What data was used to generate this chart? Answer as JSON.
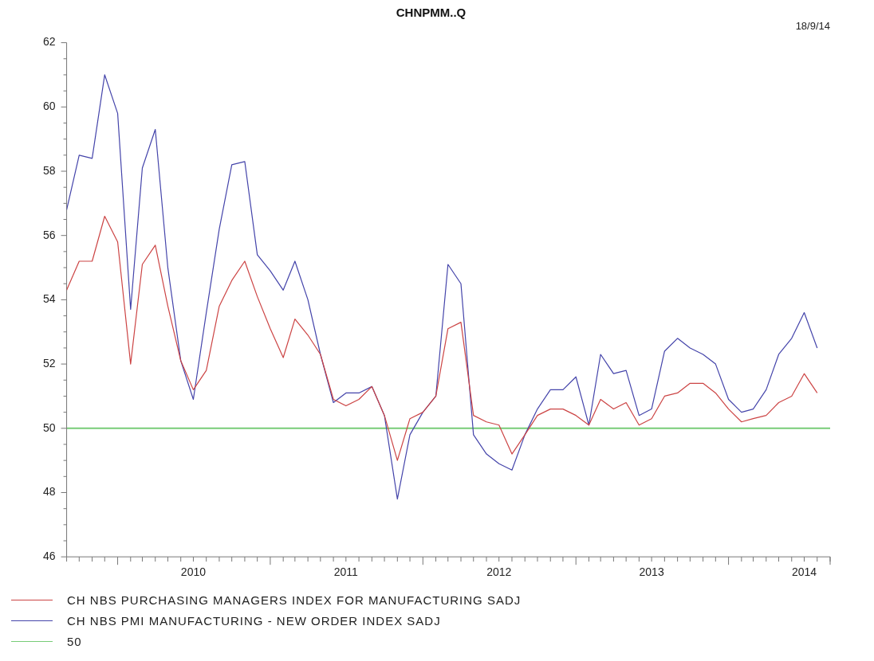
{
  "chart_data": {
    "type": "line",
    "title": "CHNPMM..Q",
    "subtitle": "18/9/14",
    "x": [
      "2009-09",
      "2009-10",
      "2009-11",
      "2009-12",
      "2010-01",
      "2010-02",
      "2010-03",
      "2010-04",
      "2010-05",
      "2010-06",
      "2010-07",
      "2010-08",
      "2010-09",
      "2010-10",
      "2010-11",
      "2010-12",
      "2011-01",
      "2011-02",
      "2011-03",
      "2011-04",
      "2011-05",
      "2011-06",
      "2011-07",
      "2011-08",
      "2011-09",
      "2011-10",
      "2011-11",
      "2011-12",
      "2012-01",
      "2012-02",
      "2012-03",
      "2012-04",
      "2012-05",
      "2012-06",
      "2012-07",
      "2012-08",
      "2012-09",
      "2012-10",
      "2012-11",
      "2012-12",
      "2013-01",
      "2013-02",
      "2013-03",
      "2013-04",
      "2013-05",
      "2013-06",
      "2013-07",
      "2013-08",
      "2013-09",
      "2013-10",
      "2013-11",
      "2013-12",
      "2014-01",
      "2014-02",
      "2014-03",
      "2014-04",
      "2014-05",
      "2014-06",
      "2014-07",
      "2014-08"
    ],
    "series": [
      {
        "name": "CH NBS PURCHASING MANAGERS INDEX FOR MANUFACTURING SADJ",
        "color": "#cc4444",
        "values": [
          54.3,
          55.2,
          55.2,
          56.6,
          55.8,
          52.0,
          55.1,
          55.7,
          53.8,
          52.1,
          51.2,
          51.8,
          53.8,
          54.6,
          55.2,
          54.1,
          53.1,
          52.2,
          53.4,
          52.9,
          52.3,
          50.9,
          50.7,
          50.9,
          51.3,
          50.4,
          49.0,
          50.3,
          50.5,
          51.0,
          53.1,
          53.3,
          50.4,
          50.2,
          50.1,
          49.2,
          49.8,
          50.4,
          50.6,
          50.6,
          50.4,
          50.1,
          50.9,
          50.6,
          50.8,
          50.1,
          50.3,
          51.0,
          51.1,
          51.4,
          51.4,
          51.1,
          50.6,
          50.2,
          50.3,
          50.4,
          50.8,
          51.0,
          51.7,
          51.1
        ]
      },
      {
        "name": "CH NBS PMI MANUFACTURING - NEW ORDER INDEX SADJ",
        "color": "#4444aa",
        "values": [
          56.8,
          58.5,
          58.4,
          61.0,
          59.8,
          53.7,
          58.1,
          59.3,
          55.0,
          52.1,
          50.9,
          53.6,
          56.2,
          58.2,
          58.3,
          55.4,
          54.9,
          54.3,
          55.2,
          54.0,
          52.3,
          50.8,
          51.1,
          51.1,
          51.3,
          50.4,
          47.8,
          49.8,
          50.5,
          51.0,
          55.1,
          54.5,
          49.8,
          49.2,
          48.9,
          48.7,
          49.8,
          50.6,
          51.2,
          51.2,
          51.6,
          50.1,
          52.3,
          51.7,
          51.8,
          50.4,
          50.6,
          52.4,
          52.8,
          52.5,
          52.3,
          52.0,
          50.9,
          50.5,
          50.6,
          51.2,
          52.3,
          52.8,
          53.6,
          52.5
        ]
      }
    ],
    "xlim": [
      "2009-09",
      "2014-09"
    ],
    "xticks": [
      {
        "value": "2010-07",
        "label": "2010"
      },
      {
        "value": "2011-07",
        "label": "2011"
      },
      {
        "value": "2012-07",
        "label": "2012"
      },
      {
        "value": "2013-07",
        "label": "2013"
      },
      {
        "value": "2014-07",
        "label": "2014"
      }
    ],
    "ylim": [
      46,
      62
    ],
    "yticks": [
      46,
      48,
      50,
      52,
      54,
      56,
      58,
      60,
      62
    ],
    "ref_lines": [
      {
        "axis": "y",
        "value": 50,
        "label": "50",
        "color": "#77cc77"
      }
    ],
    "grid": false,
    "legend": "bottom left",
    "marker": "none",
    "line_style": "solid"
  }
}
